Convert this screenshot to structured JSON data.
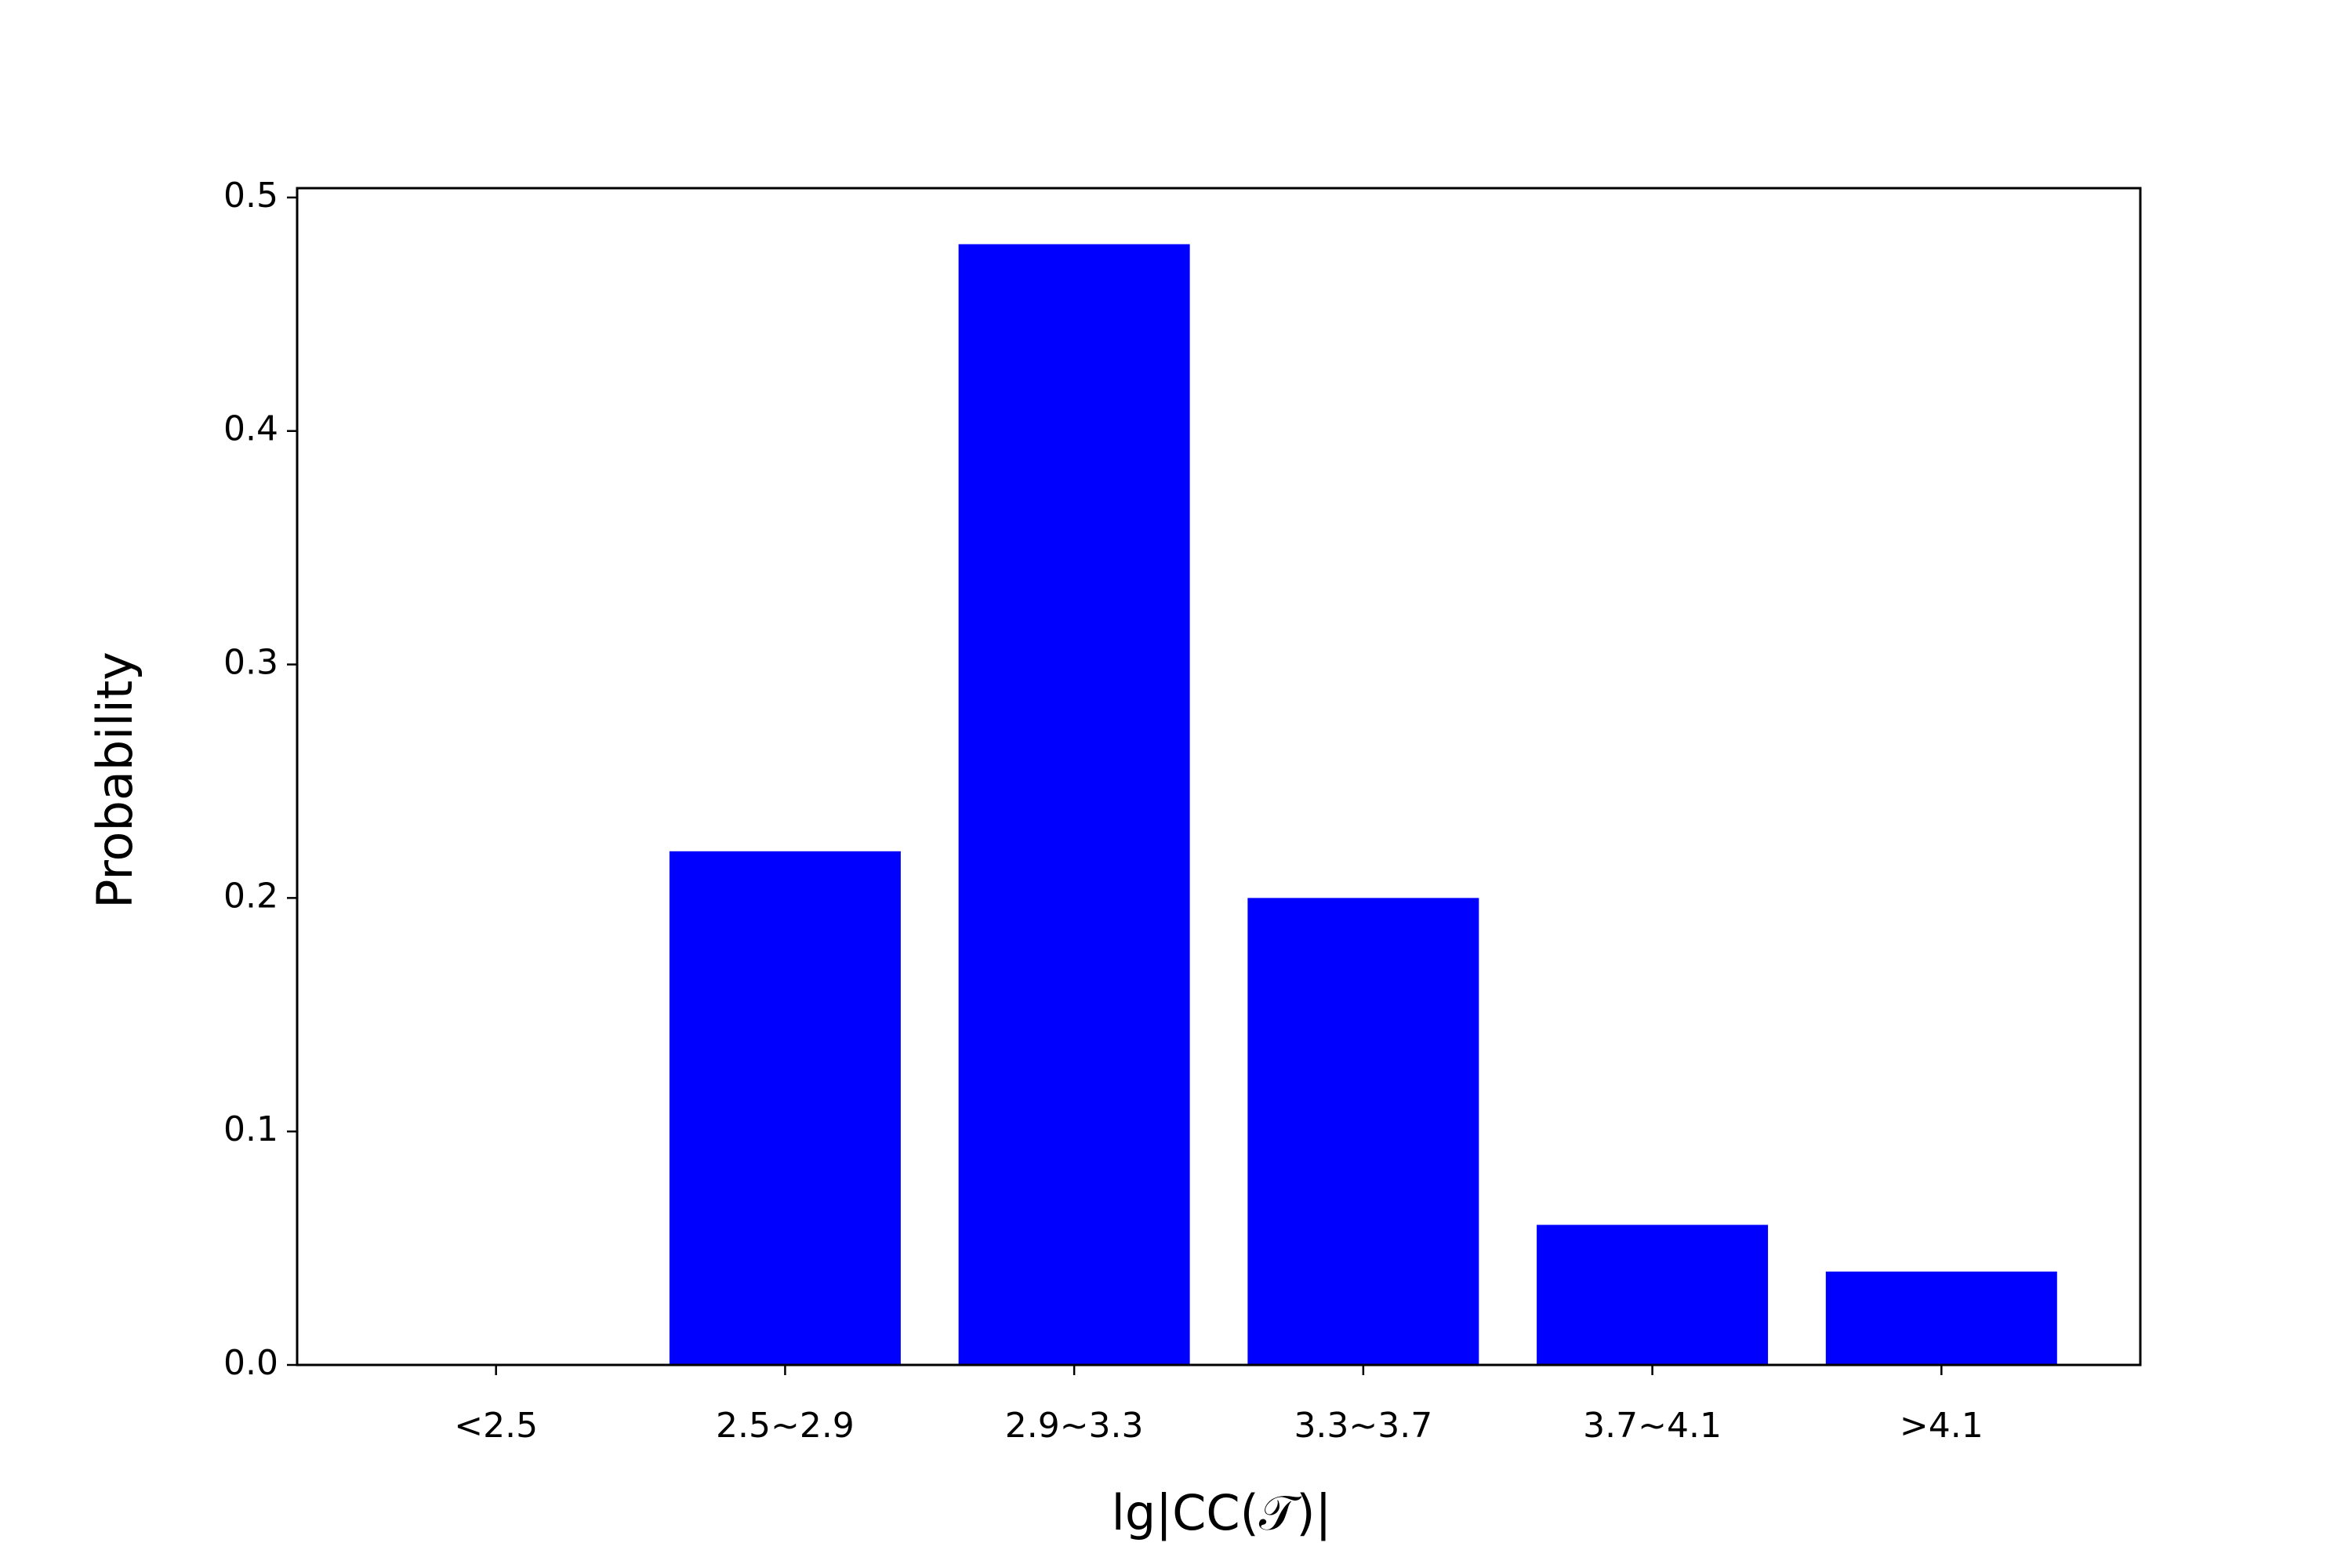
{
  "chart_data": {
    "type": "bar",
    "x_label": "lg|CC(𝒯)|",
    "y_label": "Probability",
    "categories": [
      "<2.5",
      "2.5~2.9",
      "2.9~3.3",
      "3.3~3.7",
      "3.7~4.1",
      ">4.1"
    ],
    "values": [
      0,
      0.22,
      0.48,
      0.2,
      0.06,
      0.04
    ],
    "color": "#0000ff",
    "ylim": [
      0,
      0.504
    ],
    "yticks": [
      {
        "value": 0,
        "label": "0.0"
      },
      0.1,
      0.2,
      0.3,
      0.4,
      0.5
    ],
    "grid": false
  }
}
